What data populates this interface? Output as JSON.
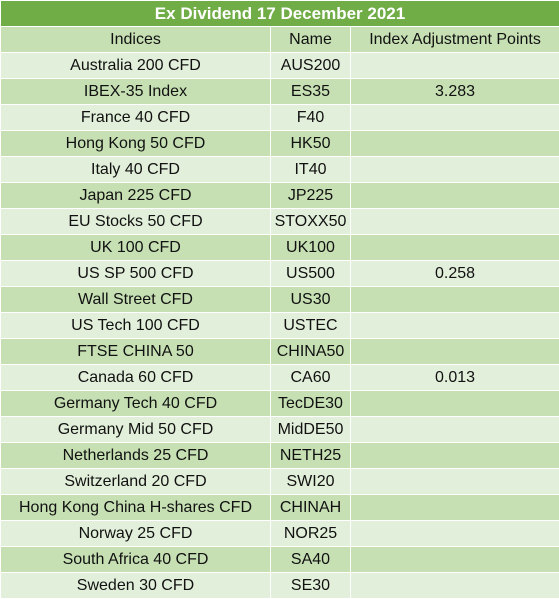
{
  "title": "Ex Dividend 17 December 2021",
  "headers": [
    "Indices",
    "Name",
    "Index Adjustment Points"
  ],
  "rows": [
    {
      "index": "Australia 200 CFD",
      "name": "AUS200",
      "points": ""
    },
    {
      "index": "IBEX-35 Index",
      "name": "ES35",
      "points": "3.283"
    },
    {
      "index": "France 40 CFD",
      "name": "F40",
      "points": ""
    },
    {
      "index": "Hong Kong 50 CFD",
      "name": "HK50",
      "points": ""
    },
    {
      "index": "Italy 40 CFD",
      "name": "IT40",
      "points": ""
    },
    {
      "index": "Japan 225 CFD",
      "name": "JP225",
      "points": ""
    },
    {
      "index": "EU Stocks 50 CFD",
      "name": "STOXX50",
      "points": ""
    },
    {
      "index": "UK 100 CFD",
      "name": "UK100",
      "points": ""
    },
    {
      "index": "US SP 500 CFD",
      "name": "US500",
      "points": "0.258"
    },
    {
      "index": "Wall Street CFD",
      "name": "US30",
      "points": ""
    },
    {
      "index": "US Tech 100 CFD",
      "name": "USTEC",
      "points": ""
    },
    {
      "index": "FTSE CHINA 50",
      "name": "CHINA50",
      "points": ""
    },
    {
      "index": "Canada 60 CFD",
      "name": "CA60",
      "points": "0.013"
    },
    {
      "index": "Germany Tech 40 CFD",
      "name": "TecDE30",
      "points": ""
    },
    {
      "index": "Germany Mid 50 CFD",
      "name": "MidDE50",
      "points": ""
    },
    {
      "index": "Netherlands 25 CFD",
      "name": "NETH25",
      "points": ""
    },
    {
      "index": "Switzerland 20 CFD",
      "name": "SWI20",
      "points": ""
    },
    {
      "index": "Hong Kong China H-shares CFD",
      "name": "CHINAH",
      "points": ""
    },
    {
      "index": "Norway 25 CFD",
      "name": "NOR25",
      "points": ""
    },
    {
      "index": "South Africa 40 CFD",
      "name": "SA40",
      "points": ""
    },
    {
      "index": "Sweden 30 CFD",
      "name": "SE30",
      "points": ""
    }
  ],
  "colors": {
    "title_bg": "#70ad47",
    "title_text": "#ffffff",
    "band_dark": "#c6e0b4",
    "band_light": "#e2efda"
  }
}
